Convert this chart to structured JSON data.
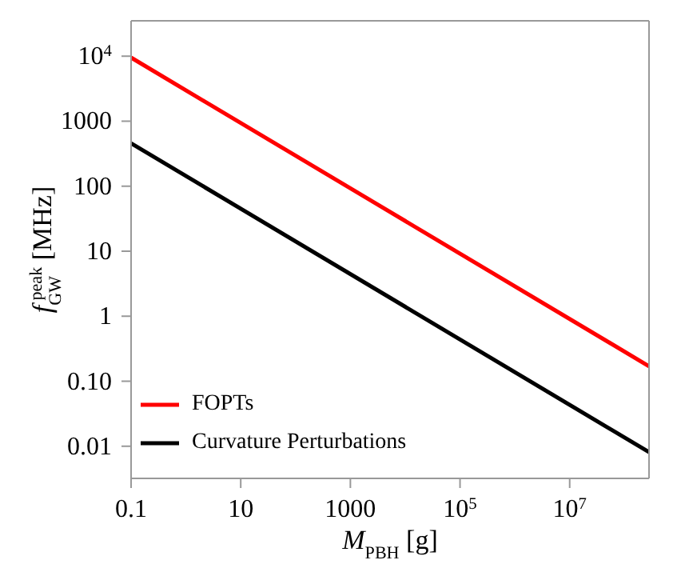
{
  "chart_data": {
    "type": "line",
    "xlabel": "M$_{PBH}$ [g]",
    "ylabel": "f$_{GW}$$^{peak}$ [MHz]",
    "log": "xy",
    "xlim": [
      0.1,
      280000000
    ],
    "ylim": [
      0.0032,
      35000
    ],
    "xticks": [
      0.1,
      10,
      1000,
      {
        "value": 100000,
        "label": "10$^{5}$"
      },
      {
        "value": 10000000,
        "label": "10$^{7}$"
      }
    ],
    "yticks": [
      0.01,
      {
        "value": 0.1,
        "label": "0.10"
      },
      1,
      10,
      100,
      1000,
      {
        "value": 10000,
        "label": "10$^{4}$"
      }
    ],
    "x": [
      0.1,
      280000000
    ],
    "series": [
      {
        "name": "FOPTs",
        "color": "#ff0000",
        "values": [
          9500,
          0.17
        ]
      },
      {
        "name": "Curvature Perturbations",
        "color": "#000000",
        "values": [
          457,
          0.0081
        ]
      }
    ],
    "legend": "bottom left",
    "grid": false,
    "marker": "none",
    "line_style": "solid"
  }
}
